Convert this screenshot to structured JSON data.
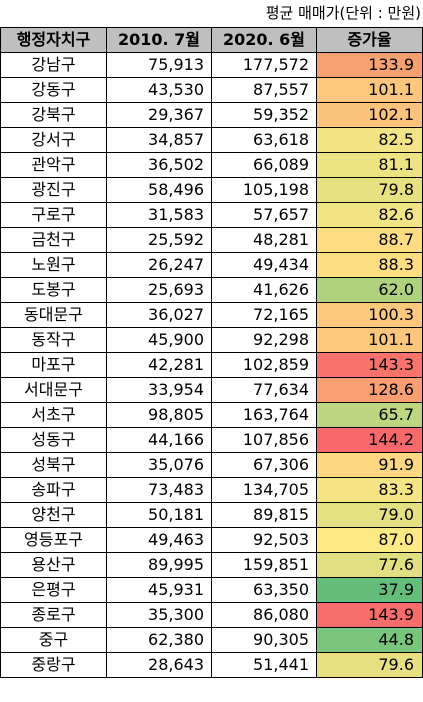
{
  "caption": "평균 매매가(단위 : 만원)",
  "headers": [
    "행정자치구",
    "2010. 7월",
    "2020. 6월",
    "증가율"
  ],
  "rows": [
    {
      "district": "강남구",
      "price_2010": "75,913",
      "price_2020": "177,572",
      "rate": "133.9",
      "color": "#f8a170"
    },
    {
      "district": "강동구",
      "price_2010": "43,530",
      "price_2020": "87,557",
      "rate": "101.1",
      "color": "#fcc67d"
    },
    {
      "district": "강북구",
      "price_2010": "29,367",
      "price_2020": "59,352",
      "rate": "102.1",
      "color": "#fcc37d"
    },
    {
      "district": "강서구",
      "price_2010": "34,857",
      "price_2020": "63,618",
      "rate": "82.5",
      "color": "#f2e384"
    },
    {
      "district": "관악구",
      "price_2010": "36,502",
      "price_2020": "66,089",
      "rate": "81.1",
      "color": "#eee383"
    },
    {
      "district": "광진구",
      "price_2010": "58,496",
      "price_2020": "105,198",
      "rate": "79.8",
      "color": "#e8e182"
    },
    {
      "district": "구로구",
      "price_2010": "31,583",
      "price_2020": "57,657",
      "rate": "82.6",
      "color": "#f2e384"
    },
    {
      "district": "금천구",
      "price_2010": "25,592",
      "price_2020": "48,281",
      "rate": "88.7",
      "color": "#fddc82"
    },
    {
      "district": "노원구",
      "price_2010": "26,247",
      "price_2020": "49,434",
      "rate": "88.3",
      "color": "#fddd82"
    },
    {
      "district": "도봉구",
      "price_2010": "25,693",
      "price_2020": "41,626",
      "rate": "62.0",
      "color": "#afd27f"
    },
    {
      "district": "동대문구",
      "price_2010": "36,027",
      "price_2020": "72,165",
      "rate": "100.3",
      "color": "#fcc87d"
    },
    {
      "district": "동작구",
      "price_2010": "45,900",
      "price_2020": "92,298",
      "rate": "101.1",
      "color": "#fcc67d"
    },
    {
      "district": "마포구",
      "price_2010": "42,281",
      "price_2020": "102,859",
      "rate": "143.3",
      "color": "#f8736b"
    },
    {
      "district": "서대문구",
      "price_2010": "33,954",
      "price_2020": "77,634",
      "rate": "128.6",
      "color": "#fa9e73"
    },
    {
      "district": "서초구",
      "price_2010": "98,805",
      "price_2020": "163,764",
      "rate": "65.7",
      "color": "#bcd780"
    },
    {
      "district": "성동구",
      "price_2010": "44,166",
      "price_2020": "107,856",
      "rate": "144.2",
      "color": "#f8696b"
    },
    {
      "district": "성북구",
      "price_2010": "35,076",
      "price_2020": "67,306",
      "rate": "91.9",
      "color": "#fdd781"
    },
    {
      "district": "송파구",
      "price_2010": "73,483",
      "price_2020": "134,705",
      "rate": "83.3",
      "color": "#f5e484"
    },
    {
      "district": "양천구",
      "price_2010": "50,181",
      "price_2020": "89,815",
      "rate": "79.0",
      "color": "#e5e082"
    },
    {
      "district": "영등포구",
      "price_2010": "49,463",
      "price_2020": "92,503",
      "rate": "87.0",
      "color": "#feea84"
    },
    {
      "district": "용산구",
      "price_2010": "89,995",
      "price_2020": "159,851",
      "rate": "77.6",
      "color": "#e0df82"
    },
    {
      "district": "은평구",
      "price_2010": "45,931",
      "price_2020": "63,350",
      "rate": "37.9",
      "color": "#63be7b"
    },
    {
      "district": "종로구",
      "price_2010": "35,300",
      "price_2020": "86,080",
      "rate": "143.9",
      "color": "#f86c6b"
    },
    {
      "district": "중구",
      "price_2010": "62,380",
      "price_2020": "90,305",
      "rate": "44.8",
      "color": "#79c57c"
    },
    {
      "district": "중랑구",
      "price_2010": "28,643",
      "price_2020": "51,441",
      "rate": "79.6",
      "color": "#e7e082"
    }
  ]
}
